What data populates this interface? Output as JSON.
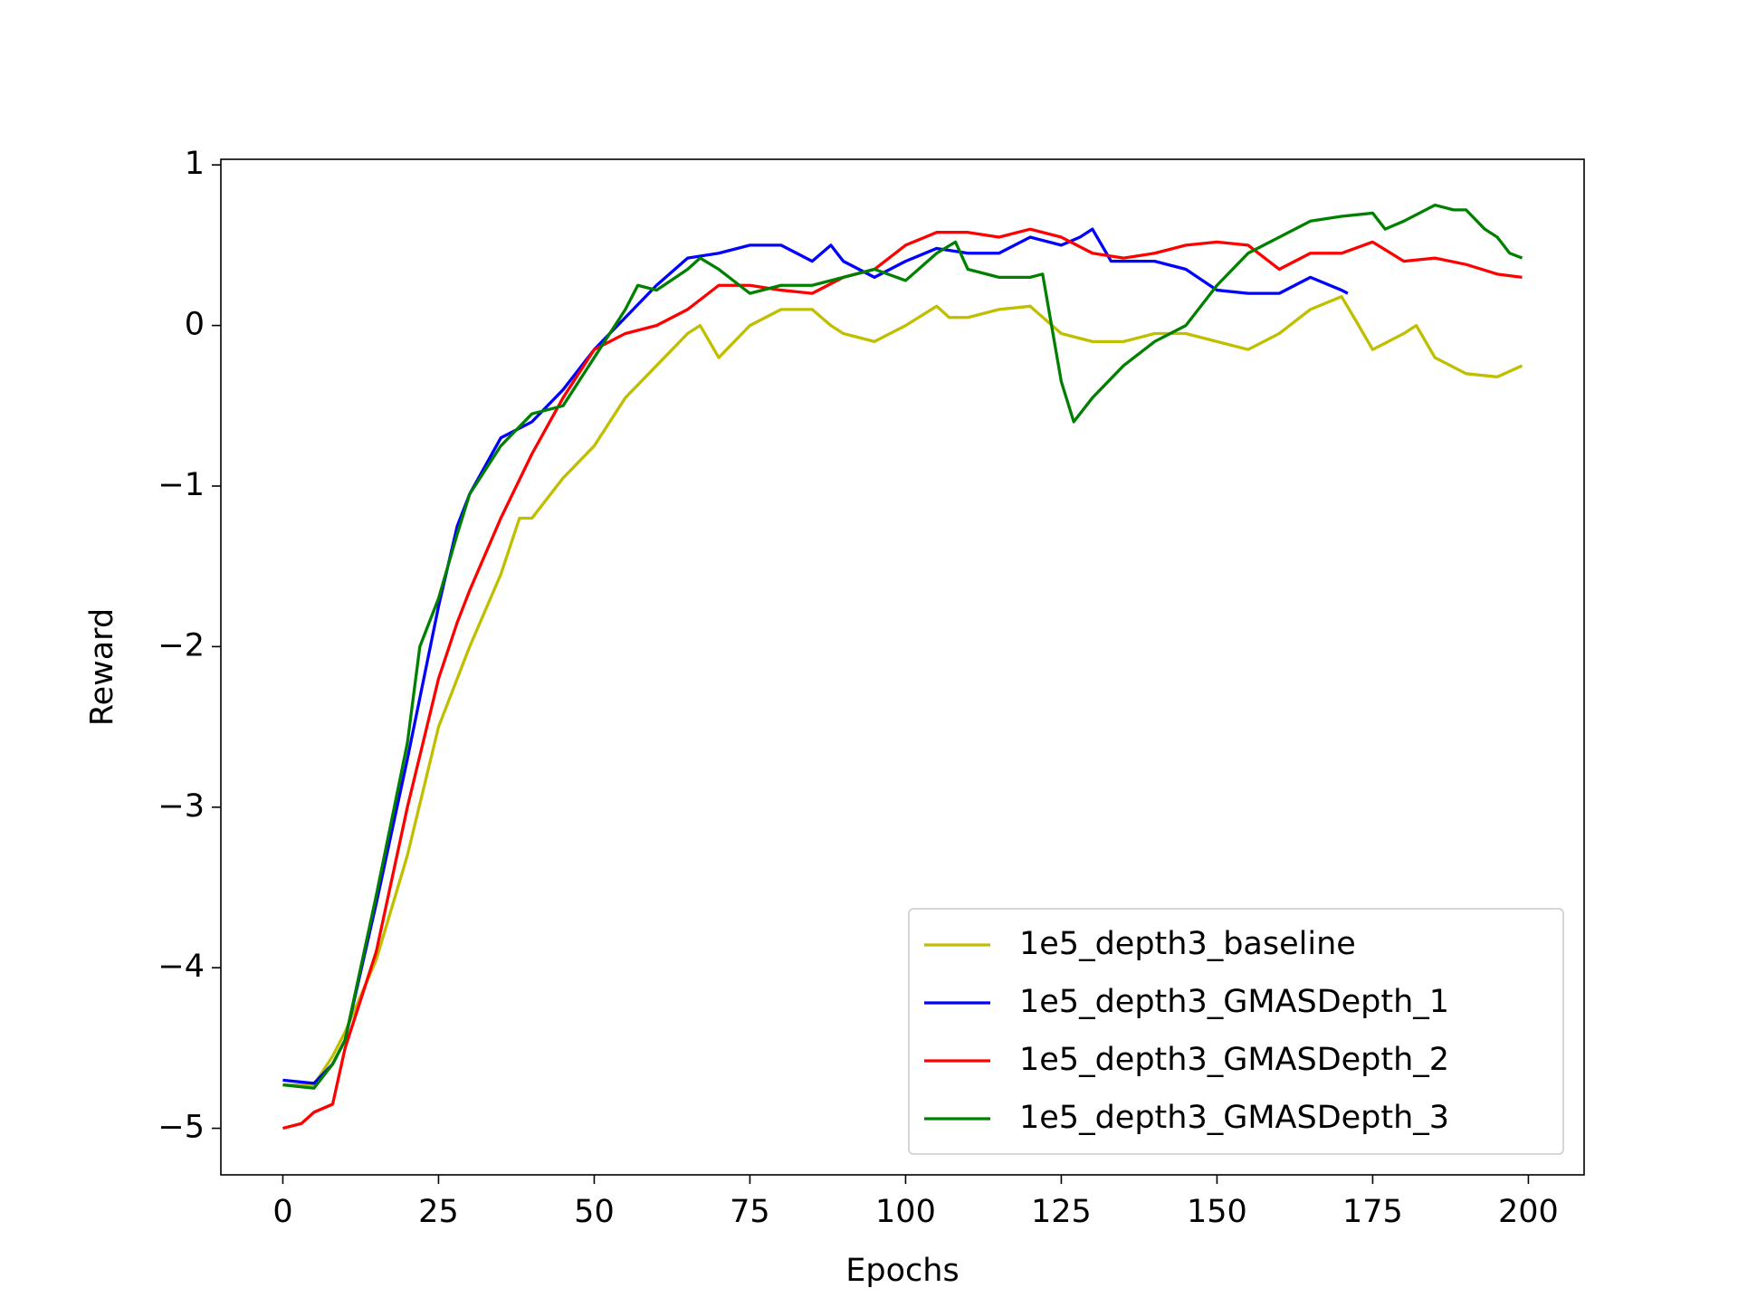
{
  "chart_data": {
    "type": "line",
    "x_label": "Epochs",
    "y_label": "Reward",
    "xlim": [
      -9.95,
      208.95
    ],
    "ylim": [
      -5.29,
      1.035
    ],
    "xticks": [
      0,
      25,
      50,
      75,
      100,
      125,
      150,
      175,
      200
    ],
    "yticks": [
      {
        "value": -5,
        "label": "−5"
      },
      {
        "value": -4,
        "label": "−4"
      },
      {
        "value": -3,
        "label": "−3"
      },
      {
        "value": -2,
        "label": "−2"
      },
      {
        "value": -1,
        "label": "−1"
      },
      0,
      1
    ],
    "grid": false,
    "legend": "lower right",
    "series": [
      {
        "name": "1e5_depth3_baseline",
        "color": "#bfbf00",
        "x": [
          0,
          5,
          8,
          10,
          15,
          20,
          25,
          28,
          30,
          35,
          38,
          40,
          45,
          50,
          55,
          60,
          65,
          67,
          70,
          75,
          80,
          85,
          88,
          90,
          95,
          100,
          105,
          107,
          110,
          115,
          120,
          125,
          130,
          135,
          140,
          145,
          150,
          155,
          160,
          165,
          170,
          172,
          175,
          180,
          182,
          185,
          190,
          195,
          199
        ],
        "values": [
          -4.73,
          -4.73,
          -4.55,
          -4.4,
          -3.95,
          -3.3,
          -2.5,
          -2.2,
          -2.0,
          -1.55,
          -1.2,
          -1.2,
          -0.95,
          -0.75,
          -0.45,
          -0.25,
          -0.05,
          0.0,
          -0.2,
          0.0,
          0.1,
          0.1,
          0.0,
          -0.05,
          -0.1,
          0.0,
          0.12,
          0.05,
          0.05,
          0.1,
          0.12,
          -0.05,
          -0.1,
          -0.1,
          -0.05,
          -0.05,
          -0.1,
          -0.15,
          -0.05,
          0.1,
          0.18,
          0.05,
          -0.15,
          -0.05,
          0.0,
          -0.2,
          -0.3,
          -0.32,
          -0.25
        ]
      },
      {
        "name": "1e5_depth3_GMASDepth_1",
        "color": "#0000ff",
        "x": [
          0,
          5,
          8,
          10,
          15,
          20,
          25,
          28,
          30,
          35,
          40,
          45,
          50,
          55,
          60,
          65,
          70,
          75,
          80,
          85,
          88,
          90,
          95,
          100,
          105,
          110,
          115,
          120,
          125,
          128,
          130,
          133,
          140,
          145,
          150,
          155,
          160,
          165,
          170,
          171
        ],
        "values": [
          -4.7,
          -4.72,
          -4.6,
          -4.45,
          -3.6,
          -2.7,
          -1.75,
          -1.25,
          -1.05,
          -0.7,
          -0.6,
          -0.4,
          -0.15,
          0.05,
          0.25,
          0.42,
          0.45,
          0.5,
          0.5,
          0.4,
          0.5,
          0.4,
          0.3,
          0.4,
          0.48,
          0.45,
          0.45,
          0.55,
          0.5,
          0.55,
          0.6,
          0.4,
          0.4,
          0.35,
          0.22,
          0.2,
          0.2,
          0.3,
          0.22,
          0.2
        ]
      },
      {
        "name": "1e5_depth3_GMASDepth_2",
        "color": "#ff0000",
        "x": [
          0,
          3,
          5,
          8,
          10,
          15,
          20,
          25,
          28,
          30,
          35,
          40,
          45,
          50,
          55,
          60,
          65,
          70,
          75,
          80,
          85,
          90,
          95,
          100,
          105,
          110,
          115,
          120,
          125,
          130,
          135,
          140,
          145,
          150,
          155,
          160,
          165,
          170,
          175,
          180,
          185,
          190,
          195,
          199
        ],
        "values": [
          -5.0,
          -4.97,
          -4.9,
          -4.85,
          -4.5,
          -3.9,
          -3.0,
          -2.2,
          -1.85,
          -1.65,
          -1.2,
          -0.8,
          -0.45,
          -0.15,
          -0.05,
          0.0,
          0.1,
          0.25,
          0.25,
          0.22,
          0.2,
          0.3,
          0.35,
          0.5,
          0.58,
          0.58,
          0.55,
          0.6,
          0.55,
          0.45,
          0.42,
          0.45,
          0.5,
          0.52,
          0.5,
          0.35,
          0.45,
          0.45,
          0.52,
          0.4,
          0.42,
          0.38,
          0.32,
          0.3
        ]
      },
      {
        "name": "1e5_depth3_GMASDepth_3",
        "color": "#008000",
        "x": [
          0,
          5,
          8,
          10,
          15,
          20,
          22,
          25,
          28,
          30,
          35,
          40,
          45,
          50,
          55,
          57,
          60,
          65,
          67,
          70,
          75,
          80,
          85,
          90,
          95,
          100,
          105,
          108,
          110,
          115,
          120,
          122,
          125,
          127,
          130,
          135,
          140,
          145,
          150,
          155,
          160,
          165,
          170,
          175,
          177,
          180,
          185,
          188,
          190,
          193,
          195,
          197,
          199
        ],
        "values": [
          -4.73,
          -4.75,
          -4.6,
          -4.45,
          -3.55,
          -2.6,
          -2.0,
          -1.7,
          -1.3,
          -1.05,
          -0.75,
          -0.55,
          -0.5,
          -0.2,
          0.1,
          0.25,
          0.22,
          0.35,
          0.42,
          0.35,
          0.2,
          0.25,
          0.25,
          0.3,
          0.35,
          0.28,
          0.45,
          0.52,
          0.35,
          0.3,
          0.3,
          0.32,
          -0.35,
          -0.6,
          -0.45,
          -0.25,
          -0.1,
          0.0,
          0.25,
          0.45,
          0.55,
          0.65,
          0.68,
          0.7,
          0.6,
          0.65,
          0.75,
          0.72,
          0.72,
          0.6,
          0.55,
          0.45,
          0.42
        ]
      }
    ]
  }
}
